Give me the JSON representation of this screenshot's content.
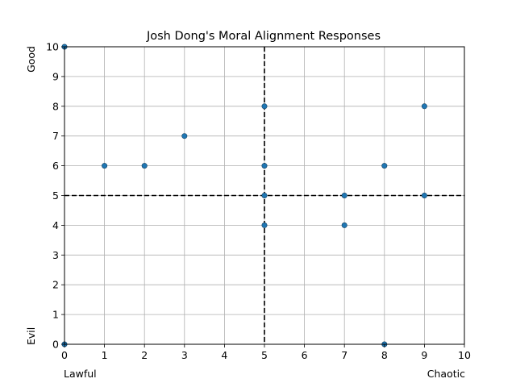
{
  "chart_data": {
    "type": "scatter",
    "title": "Josh Dong's Moral Alignment Responses",
    "xlabel_left": "Lawful",
    "xlabel_right": "Chaotic",
    "ylabel_top": "Good",
    "ylabel_bottom": "Evil",
    "xlim": [
      0,
      10
    ],
    "ylim": [
      0,
      10
    ],
    "xticks": [
      0,
      1,
      2,
      3,
      4,
      5,
      6,
      7,
      8,
      9,
      10
    ],
    "yticks": [
      0,
      1,
      2,
      3,
      4,
      5,
      6,
      7,
      8,
      9,
      10
    ],
    "grid": true,
    "reference_lines": {
      "x": 5,
      "y": 5,
      "style": "dashed",
      "color": "#000000"
    },
    "marker_color": "#1f77b4",
    "points": [
      {
        "x": 0,
        "y": 10
      },
      {
        "x": 0,
        "y": 0
      },
      {
        "x": 1,
        "y": 6
      },
      {
        "x": 2,
        "y": 6
      },
      {
        "x": 3,
        "y": 7
      },
      {
        "x": 5,
        "y": 8
      },
      {
        "x": 5,
        "y": 6
      },
      {
        "x": 5,
        "y": 5
      },
      {
        "x": 5,
        "y": 4
      },
      {
        "x": 7,
        "y": 5
      },
      {
        "x": 7,
        "y": 4
      },
      {
        "x": 8,
        "y": 6
      },
      {
        "x": 8,
        "y": 0
      },
      {
        "x": 9,
        "y": 8
      },
      {
        "x": 9,
        "y": 5
      }
    ]
  }
}
